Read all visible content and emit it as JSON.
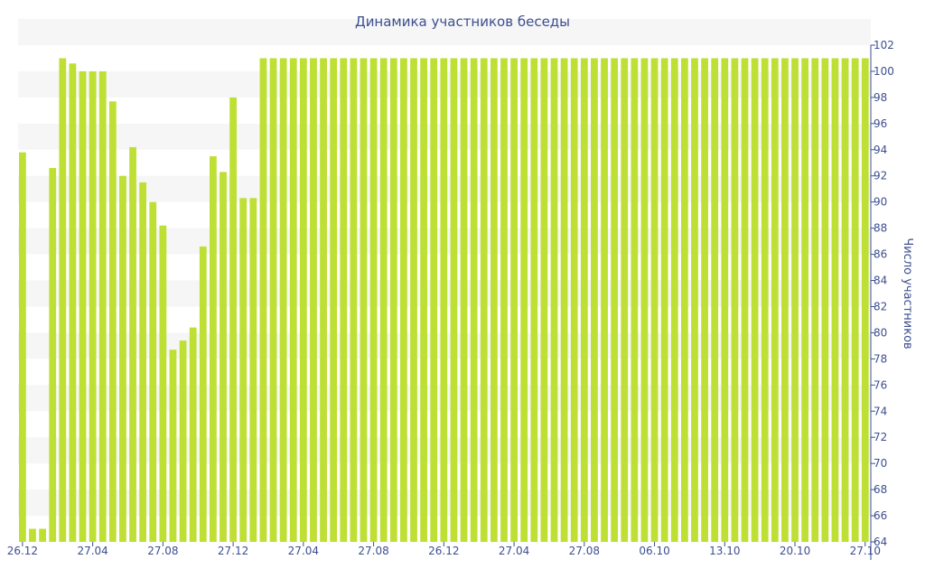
{
  "chart_data": {
    "type": "bar",
    "title": "Динамика участников беседы",
    "xlabel": "",
    "ylabel": "Число участников",
    "ylim": [
      64,
      102
    ],
    "y_ticks": [
      64,
      66,
      68,
      70,
      72,
      74,
      76,
      78,
      80,
      82,
      84,
      86,
      88,
      90,
      92,
      94,
      96,
      98,
      100,
      102
    ],
    "x_tick_labels": [
      "26.12",
      "27.04",
      "27.08",
      "27.12",
      "27.04",
      "27.08",
      "26.12",
      "27.04",
      "27.08",
      "06.10",
      "13.10",
      "20.10",
      "27.10"
    ],
    "x_tick_positions": [
      0,
      7,
      14,
      21,
      28,
      35,
      42,
      49,
      56,
      63,
      70,
      77,
      84
    ],
    "bar_color": "#bedf34",
    "band_color": "#f6f6f6",
    "text_color": "#3d4f8f",
    "grid": false,
    "values": [
      93.8,
      65,
      65,
      92.6,
      101,
      100.6,
      100,
      100,
      100,
      97.7,
      92,
      94.2,
      91.5,
      90,
      88.2,
      78.7,
      79.4,
      80.4,
      86.6,
      93.5,
      92.3,
      98,
      90.3,
      90.3,
      101,
      101,
      101,
      101,
      101,
      101,
      101,
      101,
      101,
      101,
      101,
      101,
      101,
      101,
      101,
      101,
      101,
      101,
      101,
      101,
      101,
      101,
      101,
      101,
      101,
      101,
      101,
      101,
      101,
      101,
      101,
      101,
      101,
      101,
      101,
      101,
      101,
      101,
      101,
      101,
      101,
      101,
      101,
      101,
      101,
      101,
      101,
      101,
      101,
      101,
      101,
      101,
      101,
      101,
      101,
      101,
      101,
      101,
      101,
      101,
      101
    ]
  }
}
